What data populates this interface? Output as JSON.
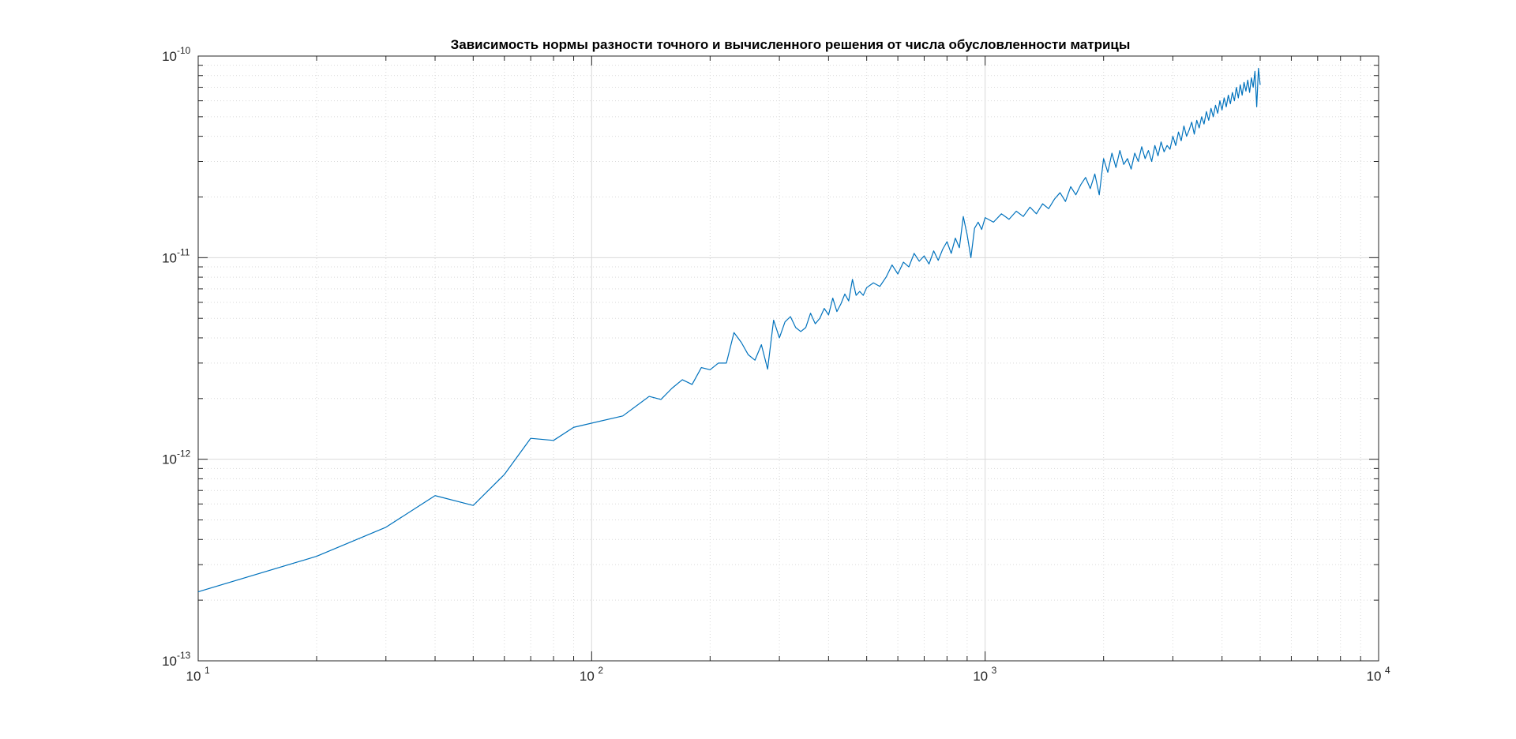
{
  "chart_data": {
    "type": "line",
    "title": "Зависимость нормы разности точного и вычисленного решения от числа обусловленности матрицы",
    "xlabel": "",
    "ylabel": "",
    "x_scale": "log",
    "y_scale": "log",
    "xlim": [
      10,
      10000
    ],
    "ylim": [
      1e-13,
      1e-10
    ],
    "grid": true,
    "minor_grid": true,
    "x_tick_labels": [
      {
        "base": "10",
        "exp": "1",
        "value": 10
      },
      {
        "base": "10",
        "exp": "2",
        "value": 100
      },
      {
        "base": "10",
        "exp": "3",
        "value": 1000
      },
      {
        "base": "10",
        "exp": "4",
        "value": 10000
      }
    ],
    "y_tick_labels": [
      {
        "base": "10",
        "exp": "-13",
        "value": 1e-13
      },
      {
        "base": "10",
        "exp": "-12",
        "value": 1e-12
      },
      {
        "base": "10",
        "exp": "-11",
        "value": 1e-11
      },
      {
        "base": "10",
        "exp": "-10",
        "value": 1e-10
      }
    ],
    "series": [
      {
        "color": "#0072BD",
        "x_step": 10,
        "x_start": 10,
        "x_end": 5000,
        "points": [
          [
            10,
            2.2e-13
          ],
          [
            20,
            3.3e-13
          ],
          [
            30,
            4.6e-13
          ],
          [
            40,
            6.6e-13
          ],
          [
            50,
            5.9e-13
          ],
          [
            60,
            8.4e-13
          ],
          [
            70,
            1.27e-12
          ],
          [
            80,
            1.24e-12
          ],
          [
            90,
            1.44e-12
          ],
          [
            120,
            1.64e-12
          ],
          [
            140,
            2.05e-12
          ],
          [
            150,
            1.98e-12
          ],
          [
            160,
            2.25e-12
          ],
          [
            170,
            2.48e-12
          ],
          [
            180,
            2.35e-12
          ],
          [
            190,
            2.85e-12
          ],
          [
            200,
            2.78e-12
          ],
          [
            210,
            3e-12
          ],
          [
            220,
            3e-12
          ],
          [
            230,
            4.25e-12
          ],
          [
            240,
            3.8e-12
          ],
          [
            250,
            3.3e-12
          ],
          [
            260,
            3.1e-12
          ],
          [
            270,
            3.7e-12
          ],
          [
            280,
            2.8e-12
          ],
          [
            290,
            4.9e-12
          ],
          [
            300,
            4e-12
          ],
          [
            310,
            4.8e-12
          ],
          [
            320,
            5.1e-12
          ],
          [
            330,
            4.5e-12
          ],
          [
            340,
            4.3e-12
          ],
          [
            350,
            4.5e-12
          ],
          [
            360,
            5.3e-12
          ],
          [
            370,
            4.7e-12
          ],
          [
            380,
            5e-12
          ],
          [
            390,
            5.6e-12
          ],
          [
            400,
            5.2e-12
          ],
          [
            410,
            6.3e-12
          ],
          [
            420,
            5.4e-12
          ],
          [
            430,
            5.9e-12
          ],
          [
            440,
            6.6e-12
          ],
          [
            450,
            6.1e-12
          ],
          [
            460,
            7.8e-12
          ],
          [
            470,
            6.5e-12
          ],
          [
            480,
            6.8e-12
          ],
          [
            490,
            6.5e-12
          ],
          [
            500,
            7.1e-12
          ],
          [
            520,
            7.5e-12
          ],
          [
            540,
            7.2e-12
          ],
          [
            560,
            8e-12
          ],
          [
            580,
            9.2e-12
          ],
          [
            600,
            8.3e-12
          ],
          [
            620,
            9.5e-12
          ],
          [
            640,
            9e-12
          ],
          [
            660,
            1.05e-11
          ],
          [
            680,
            9.6e-12
          ],
          [
            700,
            1.02e-11
          ],
          [
            720,
            9.3e-12
          ],
          [
            740,
            1.08e-11
          ],
          [
            760,
            9.7e-12
          ],
          [
            780,
            1.1e-11
          ],
          [
            800,
            1.2e-11
          ],
          [
            820,
            1.05e-11
          ],
          [
            840,
            1.25e-11
          ],
          [
            860,
            1.12e-11
          ],
          [
            880,
            1.6e-11
          ],
          [
            900,
            1.3e-11
          ],
          [
            920,
            1e-11
          ],
          [
            940,
            1.4e-11
          ],
          [
            960,
            1.5e-11
          ],
          [
            980,
            1.38e-11
          ],
          [
            1000,
            1.58e-11
          ],
          [
            1050,
            1.5e-11
          ],
          [
            1100,
            1.65e-11
          ],
          [
            1150,
            1.55e-11
          ],
          [
            1200,
            1.7e-11
          ],
          [
            1250,
            1.6e-11
          ],
          [
            1300,
            1.78e-11
          ],
          [
            1350,
            1.65e-11
          ],
          [
            1400,
            1.85e-11
          ],
          [
            1450,
            1.75e-11
          ],
          [
            1500,
            1.95e-11
          ],
          [
            1550,
            2.1e-11
          ],
          [
            1600,
            1.9e-11
          ],
          [
            1650,
            2.25e-11
          ],
          [
            1700,
            2.05e-11
          ],
          [
            1750,
            2.3e-11
          ],
          [
            1800,
            2.5e-11
          ],
          [
            1850,
            2.2e-11
          ],
          [
            1900,
            2.6e-11
          ],
          [
            1950,
            2.05e-11
          ],
          [
            2000,
            3.1e-11
          ],
          [
            2050,
            2.65e-11
          ],
          [
            2100,
            3.3e-11
          ],
          [
            2150,
            2.8e-11
          ],
          [
            2200,
            3.4e-11
          ],
          [
            2250,
            2.9e-11
          ],
          [
            2300,
            3.1e-11
          ],
          [
            2350,
            2.75e-11
          ],
          [
            2400,
            3.3e-11
          ],
          [
            2450,
            3e-11
          ],
          [
            2500,
            3.55e-11
          ],
          [
            2550,
            3.1e-11
          ],
          [
            2600,
            3.4e-11
          ],
          [
            2650,
            3e-11
          ],
          [
            2700,
            3.6e-11
          ],
          [
            2750,
            3.2e-11
          ],
          [
            2800,
            3.75e-11
          ],
          [
            2850,
            3.35e-11
          ],
          [
            2900,
            3.6e-11
          ],
          [
            2950,
            3.45e-11
          ],
          [
            3000,
            4e-11
          ],
          [
            3050,
            3.6e-11
          ],
          [
            3100,
            4.2e-11
          ],
          [
            3150,
            3.8e-11
          ],
          [
            3200,
            4.5e-11
          ],
          [
            3250,
            4e-11
          ],
          [
            3300,
            4.3e-11
          ],
          [
            3350,
            4.7e-11
          ],
          [
            3400,
            4.1e-11
          ],
          [
            3450,
            4.8e-11
          ],
          [
            3500,
            4.4e-11
          ],
          [
            3550,
            5e-11
          ],
          [
            3600,
            4.6e-11
          ],
          [
            3650,
            5.3e-11
          ],
          [
            3700,
            4.8e-11
          ],
          [
            3750,
            5.5e-11
          ],
          [
            3800,
            5e-11
          ],
          [
            3850,
            5.7e-11
          ],
          [
            3900,
            5.2e-11
          ],
          [
            3950,
            6e-11
          ],
          [
            4000,
            5.4e-11
          ],
          [
            4050,
            6.2e-11
          ],
          [
            4100,
            5.6e-11
          ],
          [
            4150,
            6.4e-11
          ],
          [
            4200,
            5.8e-11
          ],
          [
            4250,
            6.6e-11
          ],
          [
            4300,
            6e-11
          ],
          [
            4350,
            7e-11
          ],
          [
            4400,
            6.2e-11
          ],
          [
            4450,
            7.2e-11
          ],
          [
            4500,
            6.4e-11
          ],
          [
            4550,
            7.4e-11
          ],
          [
            4600,
            6.7e-11
          ],
          [
            4650,
            7.6e-11
          ],
          [
            4700,
            6.6e-11
          ],
          [
            4750,
            7.8e-11
          ],
          [
            4800,
            7e-11
          ],
          [
            4850,
            8.4e-11
          ],
          [
            4900,
            5.6e-11
          ],
          [
            4950,
            8.7e-11
          ],
          [
            5000,
            7.2e-11
          ]
        ]
      }
    ],
    "axis_color": "#262626",
    "grid_color": "#d9d9d9",
    "background": "#ffffff"
  }
}
